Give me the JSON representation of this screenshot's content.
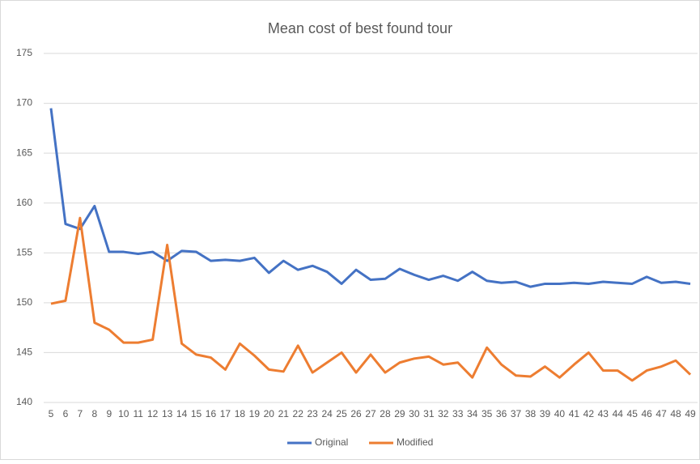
{
  "chart_data": {
    "type": "line",
    "title": "Mean cost of best found tour",
    "categories": [
      5,
      6,
      7,
      8,
      9,
      10,
      11,
      12,
      13,
      14,
      15,
      16,
      17,
      18,
      19,
      20,
      21,
      22,
      23,
      24,
      25,
      26,
      27,
      28,
      29,
      30,
      31,
      32,
      33,
      34,
      35,
      36,
      37,
      38,
      39,
      40,
      41,
      42,
      43,
      44,
      45,
      46,
      47,
      48,
      49
    ],
    "series": [
      {
        "name": "Original",
        "color": "#4472c4",
        "values": [
          169.5,
          157.9,
          157.4,
          159.7,
          155.1,
          155.1,
          154.9,
          155.1,
          154.2,
          155.2,
          155.1,
          154.2,
          154.3,
          154.2,
          154.5,
          153.0,
          154.2,
          153.3,
          153.7,
          153.1,
          151.9,
          153.3,
          152.3,
          152.4,
          153.4,
          152.8,
          152.3,
          152.7,
          152.2,
          153.1,
          152.2,
          152.0,
          152.1,
          151.6,
          151.9,
          151.9,
          152.0,
          151.9,
          152.1,
          152.0,
          151.9,
          152.6,
          152.0,
          152.1,
          151.9
        ]
      },
      {
        "name": "Modified",
        "color": "#ed7d31",
        "values": [
          149.9,
          150.2,
          158.5,
          148.0,
          147.3,
          146.0,
          146.0,
          146.3,
          155.8,
          145.9,
          144.8,
          144.5,
          143.3,
          145.9,
          144.7,
          143.3,
          143.1,
          145.7,
          143.0,
          144.0,
          145.0,
          143.0,
          144.8,
          143.0,
          144.0,
          144.4,
          144.6,
          143.8,
          144.0,
          142.5,
          145.5,
          143.8,
          142.7,
          142.6,
          143.6,
          142.5,
          143.8,
          145.0,
          143.2,
          143.2,
          142.2,
          143.2,
          143.6,
          144.2,
          142.8
        ]
      }
    ],
    "ylim": [
      140,
      175
    ],
    "yticks": [
      140,
      145,
      150,
      155,
      160,
      165,
      170,
      175
    ],
    "grid": true,
    "legend": "bottom"
  }
}
